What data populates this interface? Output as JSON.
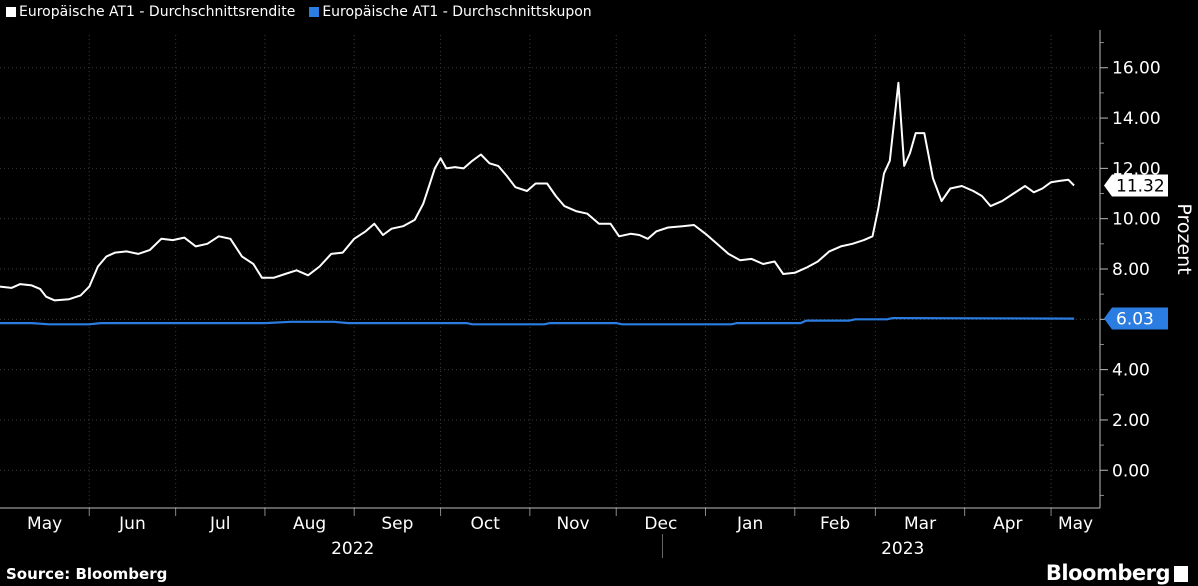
{
  "source": "Source: Bloomberg",
  "brand": "Bloomberg",
  "chart_data": {
    "type": "line",
    "title": "",
    "ylabel": "Prozent",
    "ylim": [
      -1.5,
      17.5
    ],
    "yticks": [
      "0.00",
      "2.00",
      "4.00",
      "6.00",
      "8.00",
      "10.00",
      "12.00",
      "14.00",
      "16.00"
    ],
    "xticks": [
      "May",
      "Jun",
      "Jul",
      "Aug",
      "Sep",
      "Oct",
      "Nov",
      "Dec",
      "Jan",
      "Feb",
      "Mar",
      "Apr",
      "May"
    ],
    "years": [
      "2022",
      "2023"
    ],
    "x_start": "2022-05-01",
    "series": [
      {
        "name": "Europäische AT1 - Durchschnittsrendite",
        "color": "#ffffff",
        "last_label": "11.32",
        "points": [
          [
            "2022-05-01",
            7.3
          ],
          [
            "2022-05-05",
            7.25
          ],
          [
            "2022-05-08",
            7.4
          ],
          [
            "2022-05-12",
            7.35
          ],
          [
            "2022-05-15",
            7.2
          ],
          [
            "2022-05-17",
            6.9
          ],
          [
            "2022-05-20",
            6.75
          ],
          [
            "2022-05-25",
            6.8
          ],
          [
            "2022-05-29",
            6.95
          ],
          [
            "2022-06-01",
            7.3
          ],
          [
            "2022-06-04",
            8.1
          ],
          [
            "2022-06-07",
            8.5
          ],
          [
            "2022-06-10",
            8.65
          ],
          [
            "2022-06-14",
            8.7
          ],
          [
            "2022-06-18",
            8.6
          ],
          [
            "2022-06-22",
            8.75
          ],
          [
            "2022-06-26",
            9.2
          ],
          [
            "2022-06-30",
            9.15
          ],
          [
            "2022-07-04",
            9.25
          ],
          [
            "2022-07-08",
            8.9
          ],
          [
            "2022-07-12",
            9.0
          ],
          [
            "2022-07-16",
            9.3
          ],
          [
            "2022-07-20",
            9.2
          ],
          [
            "2022-07-24",
            8.5
          ],
          [
            "2022-07-28",
            8.2
          ],
          [
            "2022-07-31",
            7.65
          ],
          [
            "2022-08-04",
            7.65
          ],
          [
            "2022-08-08",
            7.8
          ],
          [
            "2022-08-12",
            7.95
          ],
          [
            "2022-08-16",
            7.75
          ],
          [
            "2022-08-20",
            8.1
          ],
          [
            "2022-08-24",
            8.6
          ],
          [
            "2022-08-28",
            8.65
          ],
          [
            "2022-09-01",
            9.2
          ],
          [
            "2022-09-05",
            9.5
          ],
          [
            "2022-09-08",
            9.8
          ],
          [
            "2022-09-11",
            9.35
          ],
          [
            "2022-09-14",
            9.6
          ],
          [
            "2022-09-18",
            9.7
          ],
          [
            "2022-09-22",
            9.95
          ],
          [
            "2022-09-25",
            10.6
          ],
          [
            "2022-09-27",
            11.3
          ],
          [
            "2022-09-29",
            12.0
          ],
          [
            "2022-10-01",
            12.4
          ],
          [
            "2022-10-03",
            12.0
          ],
          [
            "2022-10-06",
            12.05
          ],
          [
            "2022-10-09",
            12.0
          ],
          [
            "2022-10-12",
            12.3
          ],
          [
            "2022-10-15",
            12.55
          ],
          [
            "2022-10-18",
            12.2
          ],
          [
            "2022-10-21",
            12.1
          ],
          [
            "2022-10-24",
            11.7
          ],
          [
            "2022-10-27",
            11.25
          ],
          [
            "2022-10-31",
            11.1
          ],
          [
            "2022-11-03",
            11.4
          ],
          [
            "2022-11-07",
            11.4
          ],
          [
            "2022-11-10",
            10.9
          ],
          [
            "2022-11-13",
            10.5
          ],
          [
            "2022-11-17",
            10.3
          ],
          [
            "2022-11-21",
            10.2
          ],
          [
            "2022-11-25",
            9.8
          ],
          [
            "2022-11-29",
            9.8
          ],
          [
            "2022-12-02",
            9.3
          ],
          [
            "2022-12-06",
            9.4
          ],
          [
            "2022-12-09",
            9.35
          ],
          [
            "2022-12-12",
            9.2
          ],
          [
            "2022-12-15",
            9.5
          ],
          [
            "2022-12-19",
            9.65
          ],
          [
            "2022-12-24",
            9.7
          ],
          [
            "2022-12-28",
            9.75
          ],
          [
            "2023-01-01",
            9.4
          ],
          [
            "2023-01-05",
            9.0
          ],
          [
            "2023-01-09",
            8.6
          ],
          [
            "2023-01-13",
            8.35
          ],
          [
            "2023-01-17",
            8.4
          ],
          [
            "2023-01-21",
            8.2
          ],
          [
            "2023-01-25",
            8.3
          ],
          [
            "2023-01-28",
            7.8
          ],
          [
            "2023-02-01",
            7.85
          ],
          [
            "2023-02-05",
            8.05
          ],
          [
            "2023-02-09",
            8.3
          ],
          [
            "2023-02-13",
            8.7
          ],
          [
            "2023-02-17",
            8.9
          ],
          [
            "2023-02-21",
            9.0
          ],
          [
            "2023-02-25",
            9.15
          ],
          [
            "2023-02-28",
            9.3
          ],
          [
            "2023-03-02",
            10.4
          ],
          [
            "2023-03-04",
            11.8
          ],
          [
            "2023-03-06",
            12.3
          ],
          [
            "2023-03-09",
            15.4
          ],
          [
            "2023-03-11",
            12.1
          ],
          [
            "2023-03-13",
            12.6
          ],
          [
            "2023-03-15",
            13.4
          ],
          [
            "2023-03-18",
            13.4
          ],
          [
            "2023-03-21",
            11.6
          ],
          [
            "2023-03-24",
            10.7
          ],
          [
            "2023-03-27",
            11.2
          ],
          [
            "2023-03-31",
            11.3
          ],
          [
            "2023-04-04",
            11.1
          ],
          [
            "2023-04-07",
            10.9
          ],
          [
            "2023-04-10",
            10.5
          ],
          [
            "2023-04-14",
            10.7
          ],
          [
            "2023-04-18",
            11.0
          ],
          [
            "2023-04-22",
            11.3
          ],
          [
            "2023-04-25",
            11.05
          ],
          [
            "2023-04-28",
            11.2
          ],
          [
            "2023-05-01",
            11.45
          ],
          [
            "2023-05-04",
            11.5
          ],
          [
            "2023-05-07",
            11.55
          ],
          [
            "2023-05-09",
            11.32
          ]
        ]
      },
      {
        "name": "Europäische AT1 - Durchschnittskupon",
        "color": "#2b7de2",
        "last_label": "6.03",
        "points": [
          [
            "2022-05-01",
            5.85
          ],
          [
            "2022-05-12",
            5.85
          ],
          [
            "2022-05-18",
            5.8
          ],
          [
            "2022-06-01",
            5.8
          ],
          [
            "2022-06-05",
            5.85
          ],
          [
            "2022-08-01",
            5.85
          ],
          [
            "2022-08-10",
            5.9
          ],
          [
            "2022-08-25",
            5.9
          ],
          [
            "2022-08-30",
            5.85
          ],
          [
            "2022-10-10",
            5.85
          ],
          [
            "2022-10-12",
            5.8
          ],
          [
            "2022-11-06",
            5.8
          ],
          [
            "2022-11-08",
            5.85
          ],
          [
            "2022-12-01",
            5.85
          ],
          [
            "2022-12-03",
            5.8
          ],
          [
            "2023-01-10",
            5.8
          ],
          [
            "2023-01-12",
            5.85
          ],
          [
            "2023-02-03",
            5.85
          ],
          [
            "2023-02-05",
            5.95
          ],
          [
            "2023-02-20",
            5.95
          ],
          [
            "2023-02-22",
            6.0
          ],
          [
            "2023-03-05",
            6.0
          ],
          [
            "2023-03-07",
            6.05
          ],
          [
            "2023-05-09",
            6.03
          ]
        ]
      }
    ]
  }
}
